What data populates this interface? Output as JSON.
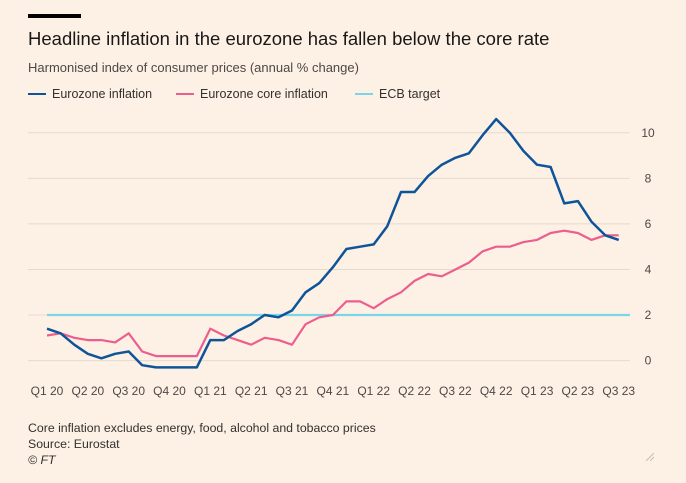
{
  "header": {
    "title": "Headline inflation in the eurozone has fallen below the core rate",
    "subtitle": "Harmonised index of consumer prices (annual % change)"
  },
  "footer": {
    "note": "Core inflation excludes energy, food, alcohol and tobacco prices",
    "source": "Source: Eurostat",
    "copyright": "© FT"
  },
  "colors": {
    "background": "#fdf1e5",
    "headline": "#0f5499",
    "core": "#eb5e8d",
    "target": "#7ad6e6",
    "grid": "#e6d9ce"
  },
  "chart_data": {
    "type": "line",
    "title": "Headline inflation in the eurozone has fallen below the core rate",
    "subtitle": "Harmonised index of consumer prices (annual % change)",
    "ylim": [
      -0.5,
      11
    ],
    "yticks": [
      0,
      2,
      4,
      6,
      8,
      10
    ],
    "xlim": [
      2020.0,
      2023.667
    ],
    "xticks": [
      {
        "x": 2020.0,
        "label": "Q1 20"
      },
      {
        "x": 2020.25,
        "label": "Q2 20"
      },
      {
        "x": 2020.5,
        "label": "Q3 20"
      },
      {
        "x": 2020.75,
        "label": "Q4 20"
      },
      {
        "x": 2021.0,
        "label": "Q1 21"
      },
      {
        "x": 2021.25,
        "label": "Q2 21"
      },
      {
        "x": 2021.5,
        "label": "Q3 21"
      },
      {
        "x": 2021.75,
        "label": "Q4 21"
      },
      {
        "x": 2022.0,
        "label": "Q1 22"
      },
      {
        "x": 2022.25,
        "label": "Q2 22"
      },
      {
        "x": 2022.5,
        "label": "Q3 22"
      },
      {
        "x": 2022.75,
        "label": "Q4 22"
      },
      {
        "x": 2023.0,
        "label": "Q1 23"
      },
      {
        "x": 2023.25,
        "label": "Q2 23"
      },
      {
        "x": 2023.5,
        "label": "Q3 23"
      }
    ],
    "legend_position": "top-left",
    "grid": "horizontal",
    "y_axis_side": "right",
    "series": [
      {
        "name": "Eurozone inflation",
        "color": "#0f5499",
        "points": [
          [
            2020.0,
            1.4
          ],
          [
            2020.083,
            1.2
          ],
          [
            2020.167,
            0.7
          ],
          [
            2020.25,
            0.3
          ],
          [
            2020.333,
            0.1
          ],
          [
            2020.417,
            0.3
          ],
          [
            2020.5,
            0.4
          ],
          [
            2020.583,
            -0.2
          ],
          [
            2020.667,
            -0.3
          ],
          [
            2020.75,
            -0.3
          ],
          [
            2020.833,
            -0.3
          ],
          [
            2020.917,
            -0.3
          ],
          [
            2021.0,
            0.9
          ],
          [
            2021.083,
            0.9
          ],
          [
            2021.167,
            1.3
          ],
          [
            2021.25,
            1.6
          ],
          [
            2021.333,
            2.0
          ],
          [
            2021.417,
            1.9
          ],
          [
            2021.5,
            2.2
          ],
          [
            2021.583,
            3.0
          ],
          [
            2021.667,
            3.4
          ],
          [
            2021.75,
            4.1
          ],
          [
            2021.833,
            4.9
          ],
          [
            2021.917,
            5.0
          ],
          [
            2022.0,
            5.1
          ],
          [
            2022.083,
            5.9
          ],
          [
            2022.167,
            7.4
          ],
          [
            2022.25,
            7.4
          ],
          [
            2022.333,
            8.1
          ],
          [
            2022.417,
            8.6
          ],
          [
            2022.5,
            8.9
          ],
          [
            2022.583,
            9.1
          ],
          [
            2022.667,
            9.9
          ],
          [
            2022.75,
            10.6
          ],
          [
            2022.833,
            10.0
          ],
          [
            2022.917,
            9.2
          ],
          [
            2023.0,
            8.6
          ],
          [
            2023.083,
            8.5
          ],
          [
            2023.167,
            6.9
          ],
          [
            2023.25,
            7.0
          ],
          [
            2023.333,
            6.1
          ],
          [
            2023.417,
            5.5
          ],
          [
            2023.5,
            5.3
          ]
        ]
      },
      {
        "name": "Eurozone core inflation",
        "color": "#eb5e8d",
        "points": [
          [
            2020.0,
            1.1
          ],
          [
            2020.083,
            1.2
          ],
          [
            2020.167,
            1.0
          ],
          [
            2020.25,
            0.9
          ],
          [
            2020.333,
            0.9
          ],
          [
            2020.417,
            0.8
          ],
          [
            2020.5,
            1.2
          ],
          [
            2020.583,
            0.4
          ],
          [
            2020.667,
            0.2
          ],
          [
            2020.75,
            0.2
          ],
          [
            2020.833,
            0.2
          ],
          [
            2020.917,
            0.2
          ],
          [
            2021.0,
            1.4
          ],
          [
            2021.083,
            1.1
          ],
          [
            2021.167,
            0.9
          ],
          [
            2021.25,
            0.7
          ],
          [
            2021.333,
            1.0
          ],
          [
            2021.417,
            0.9
          ],
          [
            2021.5,
            0.7
          ],
          [
            2021.583,
            1.6
          ],
          [
            2021.667,
            1.9
          ],
          [
            2021.75,
            2.0
          ],
          [
            2021.833,
            2.6
          ],
          [
            2021.917,
            2.6
          ],
          [
            2022.0,
            2.3
          ],
          [
            2022.083,
            2.7
          ],
          [
            2022.167,
            3.0
          ],
          [
            2022.25,
            3.5
          ],
          [
            2022.333,
            3.8
          ],
          [
            2022.417,
            3.7
          ],
          [
            2022.5,
            4.0
          ],
          [
            2022.583,
            4.3
          ],
          [
            2022.667,
            4.8
          ],
          [
            2022.75,
            5.0
          ],
          [
            2022.833,
            5.0
          ],
          [
            2022.917,
            5.2
          ],
          [
            2023.0,
            5.3
          ],
          [
            2023.083,
            5.6
          ],
          [
            2023.167,
            5.7
          ],
          [
            2023.25,
            5.6
          ],
          [
            2023.333,
            5.3
          ],
          [
            2023.417,
            5.5
          ],
          [
            2023.5,
            5.5
          ]
        ]
      },
      {
        "name": "ECB target",
        "color": "#7ad6e6",
        "points": [
          [
            2020.0,
            2.0
          ],
          [
            2023.5,
            2.0
          ]
        ]
      }
    ]
  }
}
